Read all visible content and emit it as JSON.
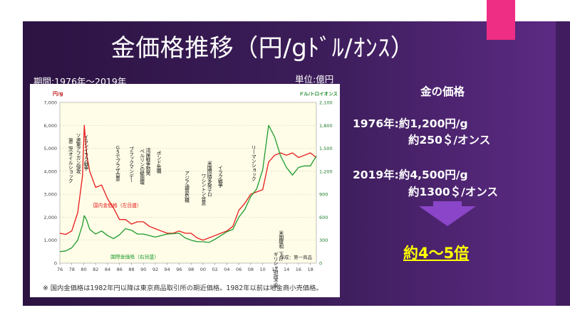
{
  "slide": {
    "title": "金価格推移（円/gﾄﾞﾙ/ｵﾝｽ）",
    "period_label": "期間:1976年～2019年",
    "unit_label": "単位:億円",
    "right_panel": {
      "heading": "金の価格",
      "line_1976_yen": "1976年:約1,200円/g",
      "line_1976_usd": "約250＄/オンス",
      "line_2019_yen": "2019年:約4,500円/g",
      "line_2019_usd": "約1300＄/オンス",
      "multiplier": "約4～5倍"
    },
    "colors": {
      "background_purple": "#3a1b56",
      "accent_pink": "#ee2e84",
      "arrow_purple": "#8a45c8",
      "highlight_yellow": "#ffff00",
      "domestic_line": "#e8191a",
      "international_line": "#1e9a2e"
    }
  },
  "chart_data": {
    "type": "line",
    "left_axis_title": "円/g",
    "right_axis_title": "ドル/トロイオンス",
    "x_ticks": [
      "76",
      "78",
      "80",
      "82",
      "84",
      "86",
      "88",
      "90",
      "92",
      "94",
      "96",
      "98",
      "00",
      "02",
      "04",
      "06",
      "08",
      "10",
      "12",
      "14",
      "16",
      "18"
    ],
    "ylim_left": [
      0,
      7000
    ],
    "ylim_right": [
      0,
      2100
    ],
    "y_ticks_left": [
      "0",
      "1,000",
      "2,000",
      "3,000",
      "4,000",
      "5,000",
      "6,000",
      "7,000"
    ],
    "y_ticks_right": [
      "0",
      "300",
      "600",
      "900",
      "1,200",
      "1,500",
      "1,800",
      "2,100"
    ],
    "series": [
      {
        "name": "国内金価格（左目盛）",
        "axis": "left",
        "color": "#e8191a",
        "x": [
          1976,
          1977,
          1978,
          1979,
          1979.8,
          1980.1,
          1980.5,
          1981,
          1982,
          1983,
          1984,
          1985,
          1986,
          1987,
          1988,
          1989,
          1990,
          1991,
          1992,
          1993,
          1994,
          1995,
          1996,
          1997,
          1998,
          1999,
          2000,
          2001,
          2002,
          2003,
          2004,
          2005,
          2006,
          2007,
          2008,
          2009,
          2010,
          2011,
          2012,
          2013,
          2014,
          2015,
          2016,
          2017,
          2018,
          2019
        ],
        "values": [
          1300,
          1250,
          1400,
          2200,
          3800,
          6000,
          4700,
          4000,
          3300,
          3400,
          2800,
          2400,
          1900,
          1900,
          1700,
          1800,
          1800,
          1600,
          1500,
          1400,
          1300,
          1300,
          1400,
          1300,
          1300,
          1100,
          1000,
          1100,
          1200,
          1300,
          1400,
          1600,
          2300,
          2600,
          3000,
          3100,
          3200,
          4400,
          4700,
          4800,
          4700,
          4800,
          4600,
          4700,
          4800,
          4600
        ]
      },
      {
        "name": "国際金価格（右目盛）",
        "axis": "right",
        "color": "#1e9a2e",
        "x": [
          1976,
          1977,
          1978,
          1979,
          1979.8,
          1980.1,
          1980.5,
          1981,
          1982,
          1983,
          1984,
          1985,
          1986,
          1987,
          1988,
          1989,
          1990,
          1991,
          1992,
          1993,
          1994,
          1995,
          1996,
          1997,
          1998,
          1999,
          2000,
          2001,
          2002,
          2003,
          2004,
          2005,
          2006,
          2007,
          2008,
          2009,
          2010,
          2011,
          2012,
          2013,
          2014,
          2015,
          2016,
          2017,
          2018,
          2019
        ],
        "values": [
          150,
          160,
          200,
          300,
          500,
          620,
          560,
          440,
          380,
          420,
          360,
          320,
          370,
          450,
          430,
          380,
          380,
          360,
          340,
          360,
          380,
          385,
          390,
          330,
          300,
          280,
          280,
          270,
          310,
          360,
          410,
          440,
          600,
          700,
          870,
          970,
          1220,
          1800,
          1650,
          1400,
          1250,
          1150,
          1250,
          1270,
          1270,
          1400
        ]
      }
    ],
    "annotations": [
      {
        "x": 1977.7,
        "text": "第二次オイルショック"
      },
      {
        "x": 1979.0,
        "text": "ソ連軍アフガン侵攻"
      },
      {
        "x": 1980.3,
        "text": "イランイラク戦争"
      },
      {
        "x": 1985.6,
        "text": "Ｇ５でプラザ合意"
      },
      {
        "x": 1987.9,
        "text": "ブラックマンデー"
      },
      {
        "x": 1989.7,
        "text": "ベルリンの壁崩壊"
      },
      {
        "x": 1990.7,
        "text": "湾岸戦争勃発"
      },
      {
        "x": 1992.5,
        "text": "ポンド危機"
      },
      {
        "x": 1997.2,
        "text": "アジア通貨危機"
      },
      {
        "x": 2001.0,
        "text": "米国同時多発テロ"
      },
      {
        "x": 2000.0,
        "text": "ワシントン合意"
      },
      {
        "x": 2002.8,
        "text": "イラク戦争"
      },
      {
        "x": 2008.4,
        "text": "リーマンショック"
      },
      {
        "x": 2013.0,
        "text": "米国緩和"
      },
      {
        "x": 2013.0,
        "text": "下げ"
      },
      {
        "x": 2012.1,
        "text": "ギリシャ"
      },
      {
        "x": 2012.1,
        "text": "財政不安"
      }
    ],
    "inline_labels": [
      {
        "text": "国内金価格（左目盛）",
        "series": 0
      },
      {
        "text": "国際金価格（右目盛）",
        "series": 1
      }
    ],
    "credit": "作成：第一商品",
    "footnote": "※ 国内金価格は1982年円以降は東京商品取引所の期近価格。1982年以前は地金商小売価格。"
  }
}
